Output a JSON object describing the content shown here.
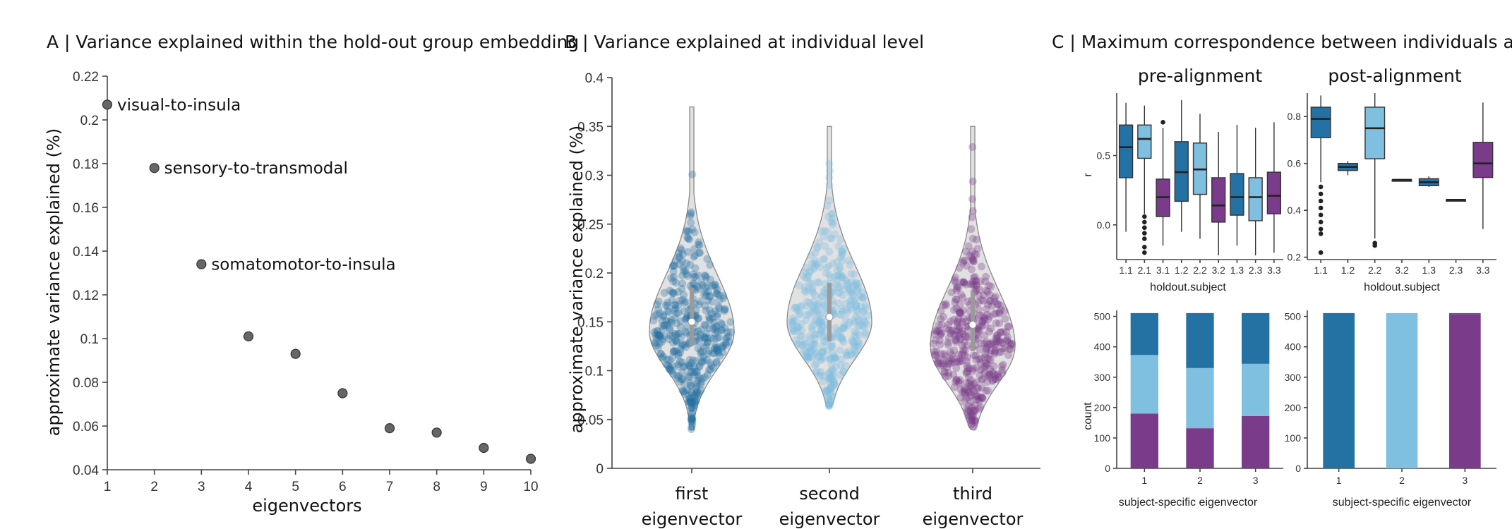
{
  "colors": {
    "dark_blue": "#2471a3",
    "light_blue": "#7fbfdf",
    "purple": "#7a3b8a",
    "grey_point": "#666666",
    "violin_fill": "#c9c9c9"
  },
  "chart_data": [
    {
      "id": "A",
      "type": "scatter",
      "title": "A | Variance explained within the hold-out group embedding",
      "xlabel": "eigenvectors",
      "ylabel": "approximate variance explained (%)",
      "xlim": [
        1,
        10
      ],
      "ylim": [
        0.04,
        0.22
      ],
      "xticks": [
        "1",
        "2",
        "3",
        "4",
        "5",
        "6",
        "7",
        "8",
        "9",
        "10"
      ],
      "yticks": [
        "0.04",
        "0.06",
        "0.08",
        "0.1",
        "0.12",
        "0.14",
        "0.16",
        "0.18",
        "0.2",
        "0.22"
      ],
      "x": [
        1,
        2,
        3,
        4,
        5,
        6,
        7,
        8,
        9,
        10
      ],
      "y": [
        0.207,
        0.178,
        0.134,
        0.101,
        0.093,
        0.075,
        0.059,
        0.057,
        0.05,
        0.045
      ],
      "annotations": [
        {
          "x": 1,
          "y": 0.207,
          "text": "visual-to-insula"
        },
        {
          "x": 2,
          "y": 0.178,
          "text": "sensory-to-transmodal"
        },
        {
          "x": 3,
          "y": 0.134,
          "text": "somatomotor-to-insula"
        }
      ]
    },
    {
      "id": "B",
      "type": "violin",
      "title": "B | Variance explained at individual level",
      "ylabel": "approximate variance explained (%)",
      "ylim": [
        0,
        0.4
      ],
      "yticks": [
        "0",
        "0.05",
        "0.1",
        "0.15",
        "0.2",
        "0.25",
        "0.3",
        "0.35",
        "0.4"
      ],
      "categories": [
        {
          "line1": "first",
          "line2": "eigenvector",
          "min": 0.04,
          "max": 0.37,
          "median": 0.15,
          "q1": 0.125,
          "q3": 0.185,
          "mode": 0.14,
          "color": "dark_blue"
        },
        {
          "line1": "second",
          "line2": "eigenvector",
          "min": 0.063,
          "max": 0.35,
          "median": 0.155,
          "q1": 0.13,
          "q3": 0.19,
          "mode": 0.15,
          "color": "light_blue"
        },
        {
          "line1": "third",
          "line2": "eigenvector",
          "min": 0.04,
          "max": 0.35,
          "median": 0.147,
          "q1": 0.12,
          "q3": 0.18,
          "mode": 0.125,
          "color": "purple"
        }
      ]
    },
    {
      "id": "C",
      "type": "box",
      "title": "C | Maximum correspondence between individuals and hold-out",
      "panels": [
        {
          "subtitle": "pre-alignment",
          "ylabel": "r",
          "xlabel": "holdout.subject",
          "ylim": [
            -0.25,
            0.95
          ],
          "yticks": [
            "0.0",
            "0.5"
          ],
          "ytick_values": [
            0.0,
            0.5
          ],
          "categories": [
            "1.1",
            "2.1",
            "3.1",
            "1.2",
            "2.2",
            "3.2",
            "1.3",
            "2.3",
            "3.3"
          ],
          "boxes": [
            {
              "color": "dark_blue",
              "low": -0.05,
              "q1": 0.34,
              "med": 0.56,
              "q3": 0.72,
              "high": 0.88,
              "outliers": []
            },
            {
              "color": "light_blue",
              "low": 0.08,
              "q1": 0.48,
              "med": 0.62,
              "q3": 0.72,
              "high": 0.86,
              "outliers": [
                0.06,
                0.02,
                -0.02,
                -0.06,
                -0.1,
                -0.16,
                -0.2
              ]
            },
            {
              "color": "purple",
              "low": -0.15,
              "q1": 0.06,
              "med": 0.2,
              "q3": 0.33,
              "high": 0.7,
              "outliers": [
                0.74
              ]
            },
            {
              "color": "dark_blue",
              "low": -0.05,
              "q1": 0.17,
              "med": 0.38,
              "q3": 0.6,
              "high": 0.9,
              "outliers": []
            },
            {
              "color": "light_blue",
              "low": -0.1,
              "q1": 0.22,
              "med": 0.4,
              "q3": 0.59,
              "high": 0.8,
              "outliers": []
            },
            {
              "color": "purple",
              "low": -0.22,
              "q1": 0.02,
              "med": 0.14,
              "q3": 0.34,
              "high": 0.67,
              "outliers": []
            },
            {
              "color": "dark_blue",
              "low": -0.15,
              "q1": 0.07,
              "med": 0.2,
              "q3": 0.37,
              "high": 0.72,
              "outliers": []
            },
            {
              "color": "light_blue",
              "low": -0.22,
              "q1": 0.03,
              "med": 0.2,
              "q3": 0.34,
              "high": 0.7,
              "outliers": []
            },
            {
              "color": "purple",
              "low": -0.2,
              "q1": 0.08,
              "med": 0.21,
              "q3": 0.38,
              "high": 0.74,
              "outliers": []
            }
          ]
        },
        {
          "subtitle": "post-alignment",
          "ylabel": "",
          "xlabel": "holdout.subject",
          "ylim": [
            0.19,
            0.9
          ],
          "yticks": [
            "0.2",
            "0.4",
            "0.6",
            "0.8"
          ],
          "ytick_values": [
            0.2,
            0.4,
            0.6,
            0.8
          ],
          "categories": [
            "1.1",
            "1.2",
            "2.2",
            "3.2",
            "1.3",
            "2.3",
            "3.3"
          ],
          "boxes": [
            {
              "color": "dark_blue",
              "low": 0.52,
              "q1": 0.71,
              "med": 0.79,
              "q3": 0.84,
              "high": 0.89,
              "outliers": [
                0.5,
                0.47,
                0.44,
                0.41,
                0.38,
                0.35,
                0.32,
                0.3,
                0.22
              ]
            },
            {
              "color": "dark_blue",
              "low": 0.55,
              "q1": 0.57,
              "med": 0.585,
              "q3": 0.6,
              "high": 0.61,
              "outliers": []
            },
            {
              "color": "light_blue",
              "low": 0.28,
              "q1": 0.62,
              "med": 0.75,
              "q3": 0.84,
              "high": 0.9,
              "outliers": [
                0.26,
                0.25
              ]
            },
            {
              "color": "dark_blue",
              "low": 0.53,
              "q1": 0.53,
              "med": 0.53,
              "q3": 0.53,
              "high": 0.53,
              "outliers": []
            },
            {
              "color": "dark_blue",
              "low": 0.5,
              "q1": 0.505,
              "med": 0.52,
              "q3": 0.535,
              "high": 0.545,
              "outliers": []
            },
            {
              "color": "dark_blue",
              "low": 0.445,
              "q1": 0.445,
              "med": 0.445,
              "q3": 0.445,
              "high": 0.445,
              "outliers": []
            },
            {
              "color": "purple",
              "low": 0.32,
              "q1": 0.54,
              "med": 0.6,
              "q3": 0.69,
              "high": 0.86,
              "outliers": []
            }
          ]
        }
      ],
      "count_panels": [
        {
          "ylabel": "count",
          "xlabel": "subject-specific eigenvector",
          "ylim": [
            0,
            520
          ],
          "yticks": [
            "0",
            "100",
            "200",
            "300",
            "400",
            "500"
          ],
          "ytick_values": [
            0,
            100,
            200,
            300,
            400,
            500
          ],
          "categories": [
            "1",
            "2",
            "3"
          ],
          "stacks": [
            [
              {
                "color": "purple",
                "value": 180
              },
              {
                "color": "light_blue",
                "value": 193
              },
              {
                "color": "dark_blue",
                "value": 138
              }
            ],
            [
              {
                "color": "purple",
                "value": 132
              },
              {
                "color": "light_blue",
                "value": 198
              },
              {
                "color": "dark_blue",
                "value": 181
              }
            ],
            [
              {
                "color": "purple",
                "value": 172
              },
              {
                "color": "light_blue",
                "value": 172
              },
              {
                "color": "dark_blue",
                "value": 167
              }
            ]
          ]
        },
        {
          "ylabel": "",
          "xlabel": "subject-specific eigenvector",
          "ylim": [
            0,
            520
          ],
          "yticks": [
            "0",
            "100",
            "200",
            "300",
            "400",
            "500"
          ],
          "ytick_values": [
            0,
            100,
            200,
            300,
            400,
            500
          ],
          "categories": [
            "1",
            "2",
            "3"
          ],
          "stacks": [
            [
              {
                "color": "dark_blue",
                "value": 511
              }
            ],
            [
              {
                "color": "light_blue",
                "value": 511
              }
            ],
            [
              {
                "color": "purple",
                "value": 508
              },
              {
                "color": "dark_blue",
                "value": 3
              }
            ]
          ]
        }
      ]
    }
  ]
}
